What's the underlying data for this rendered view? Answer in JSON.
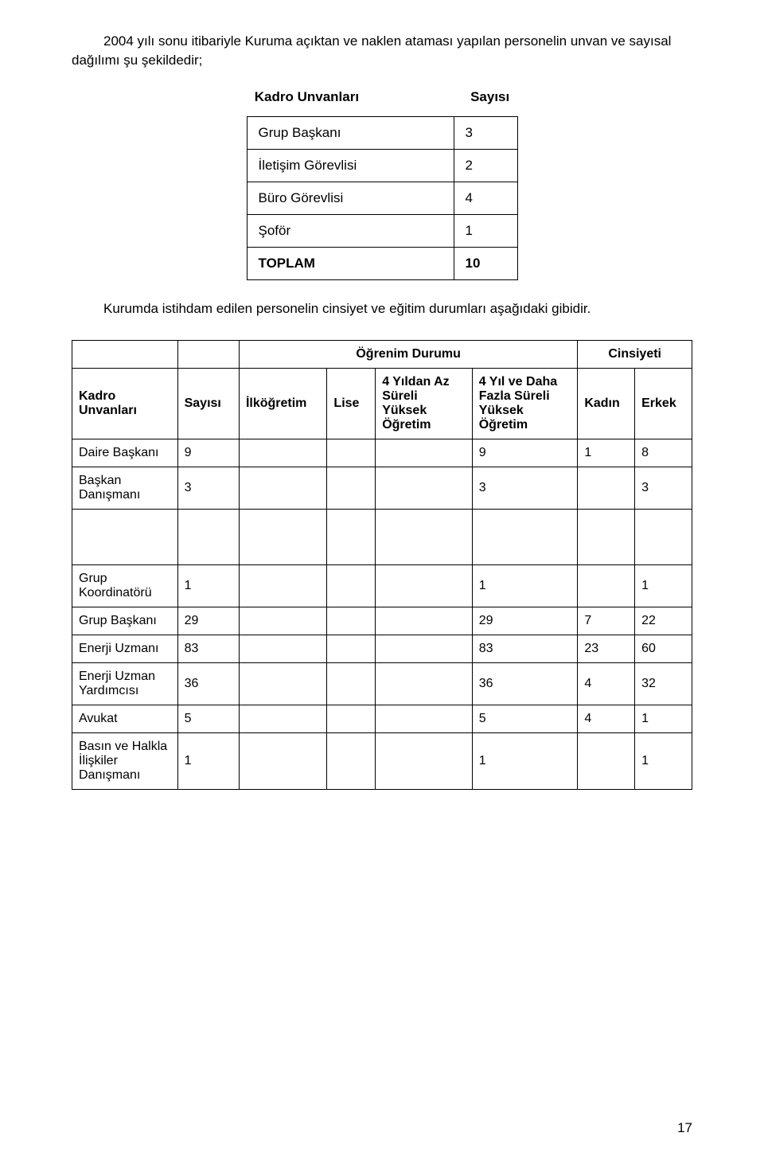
{
  "intro": "2004 yılı sonu itibariyle Kuruma açıktan ve naklen ataması yapılan personelin unvan ve sayısal dağılımı şu şekildedir;",
  "smallTable": {
    "headingA": "Kadro Unvanları",
    "headingB": "Sayısı",
    "rows": [
      {
        "label": "Grup Başkanı",
        "value": "3",
        "bold": false
      },
      {
        "label": "İletişim Görevlisi",
        "value": "2",
        "bold": false
      },
      {
        "label": "Büro Görevlisi",
        "value": "4",
        "bold": false
      },
      {
        "label": "Şoför",
        "value": "1",
        "bold": false
      },
      {
        "label": "TOPLAM",
        "value": "10",
        "bold": true
      }
    ]
  },
  "midText": "Kurumda istihdam edilen personelin cinsiyet ve eğitim durumları aşağıdaki gibidir.",
  "bigTable": {
    "headers": {
      "ogrenim": "Öğrenim Durumu",
      "cinsiyeti": "Cinsiyeti",
      "kadro": "Kadro Unvanları",
      "sayisi": "Sayısı",
      "ilkogretim": "İlköğretim",
      "lise": "Lise",
      "az": "4 Yıldan Az Süreli Yüksek Öğretim",
      "fazla": "4 Yıl ve Daha Fazla Süreli Yüksek Öğretim",
      "kadin": "Kadın",
      "erkek": "Erkek"
    },
    "rows1": [
      {
        "unvan": "Daire Başkanı",
        "sayisi": "9",
        "ilk": "",
        "lise": "",
        "az": "",
        "fazla": "9",
        "kadin": "1",
        "erkek": "8"
      },
      {
        "unvan": "Başkan Danışmanı",
        "sayisi": "3",
        "ilk": "",
        "lise": "",
        "az": "",
        "fazla": "3",
        "kadin": "",
        "erkek": "3"
      }
    ],
    "rows2": [
      {
        "unvan": "Grup Koordinatörü",
        "sayisi": "1",
        "ilk": "",
        "lise": "",
        "az": "",
        "fazla": "1",
        "kadin": "",
        "erkek": "1"
      },
      {
        "unvan": "Grup Başkanı",
        "sayisi": "29",
        "ilk": "",
        "lise": "",
        "az": "",
        "fazla": "29",
        "kadin": "7",
        "erkek": "22"
      },
      {
        "unvan": "Enerji Uzmanı",
        "sayisi": "83",
        "ilk": "",
        "lise": "",
        "az": "",
        "fazla": "83",
        "kadin": "23",
        "erkek": "60"
      },
      {
        "unvan": "Enerji Uzman Yardımcısı",
        "sayisi": "36",
        "ilk": "",
        "lise": "",
        "az": "",
        "fazla": "36",
        "kadin": "4",
        "erkek": "32"
      },
      {
        "unvan": "Avukat",
        "sayisi": "5",
        "ilk": "",
        "lise": "",
        "az": "",
        "fazla": "5",
        "kadin": "4",
        "erkek": "1"
      },
      {
        "unvan": "Basın ve Halkla İlişkiler Danışmanı",
        "sayisi": "1",
        "ilk": "",
        "lise": "",
        "az": "",
        "fazla": "1",
        "kadin": "",
        "erkek": "1"
      }
    ]
  },
  "pageNumber": "17"
}
